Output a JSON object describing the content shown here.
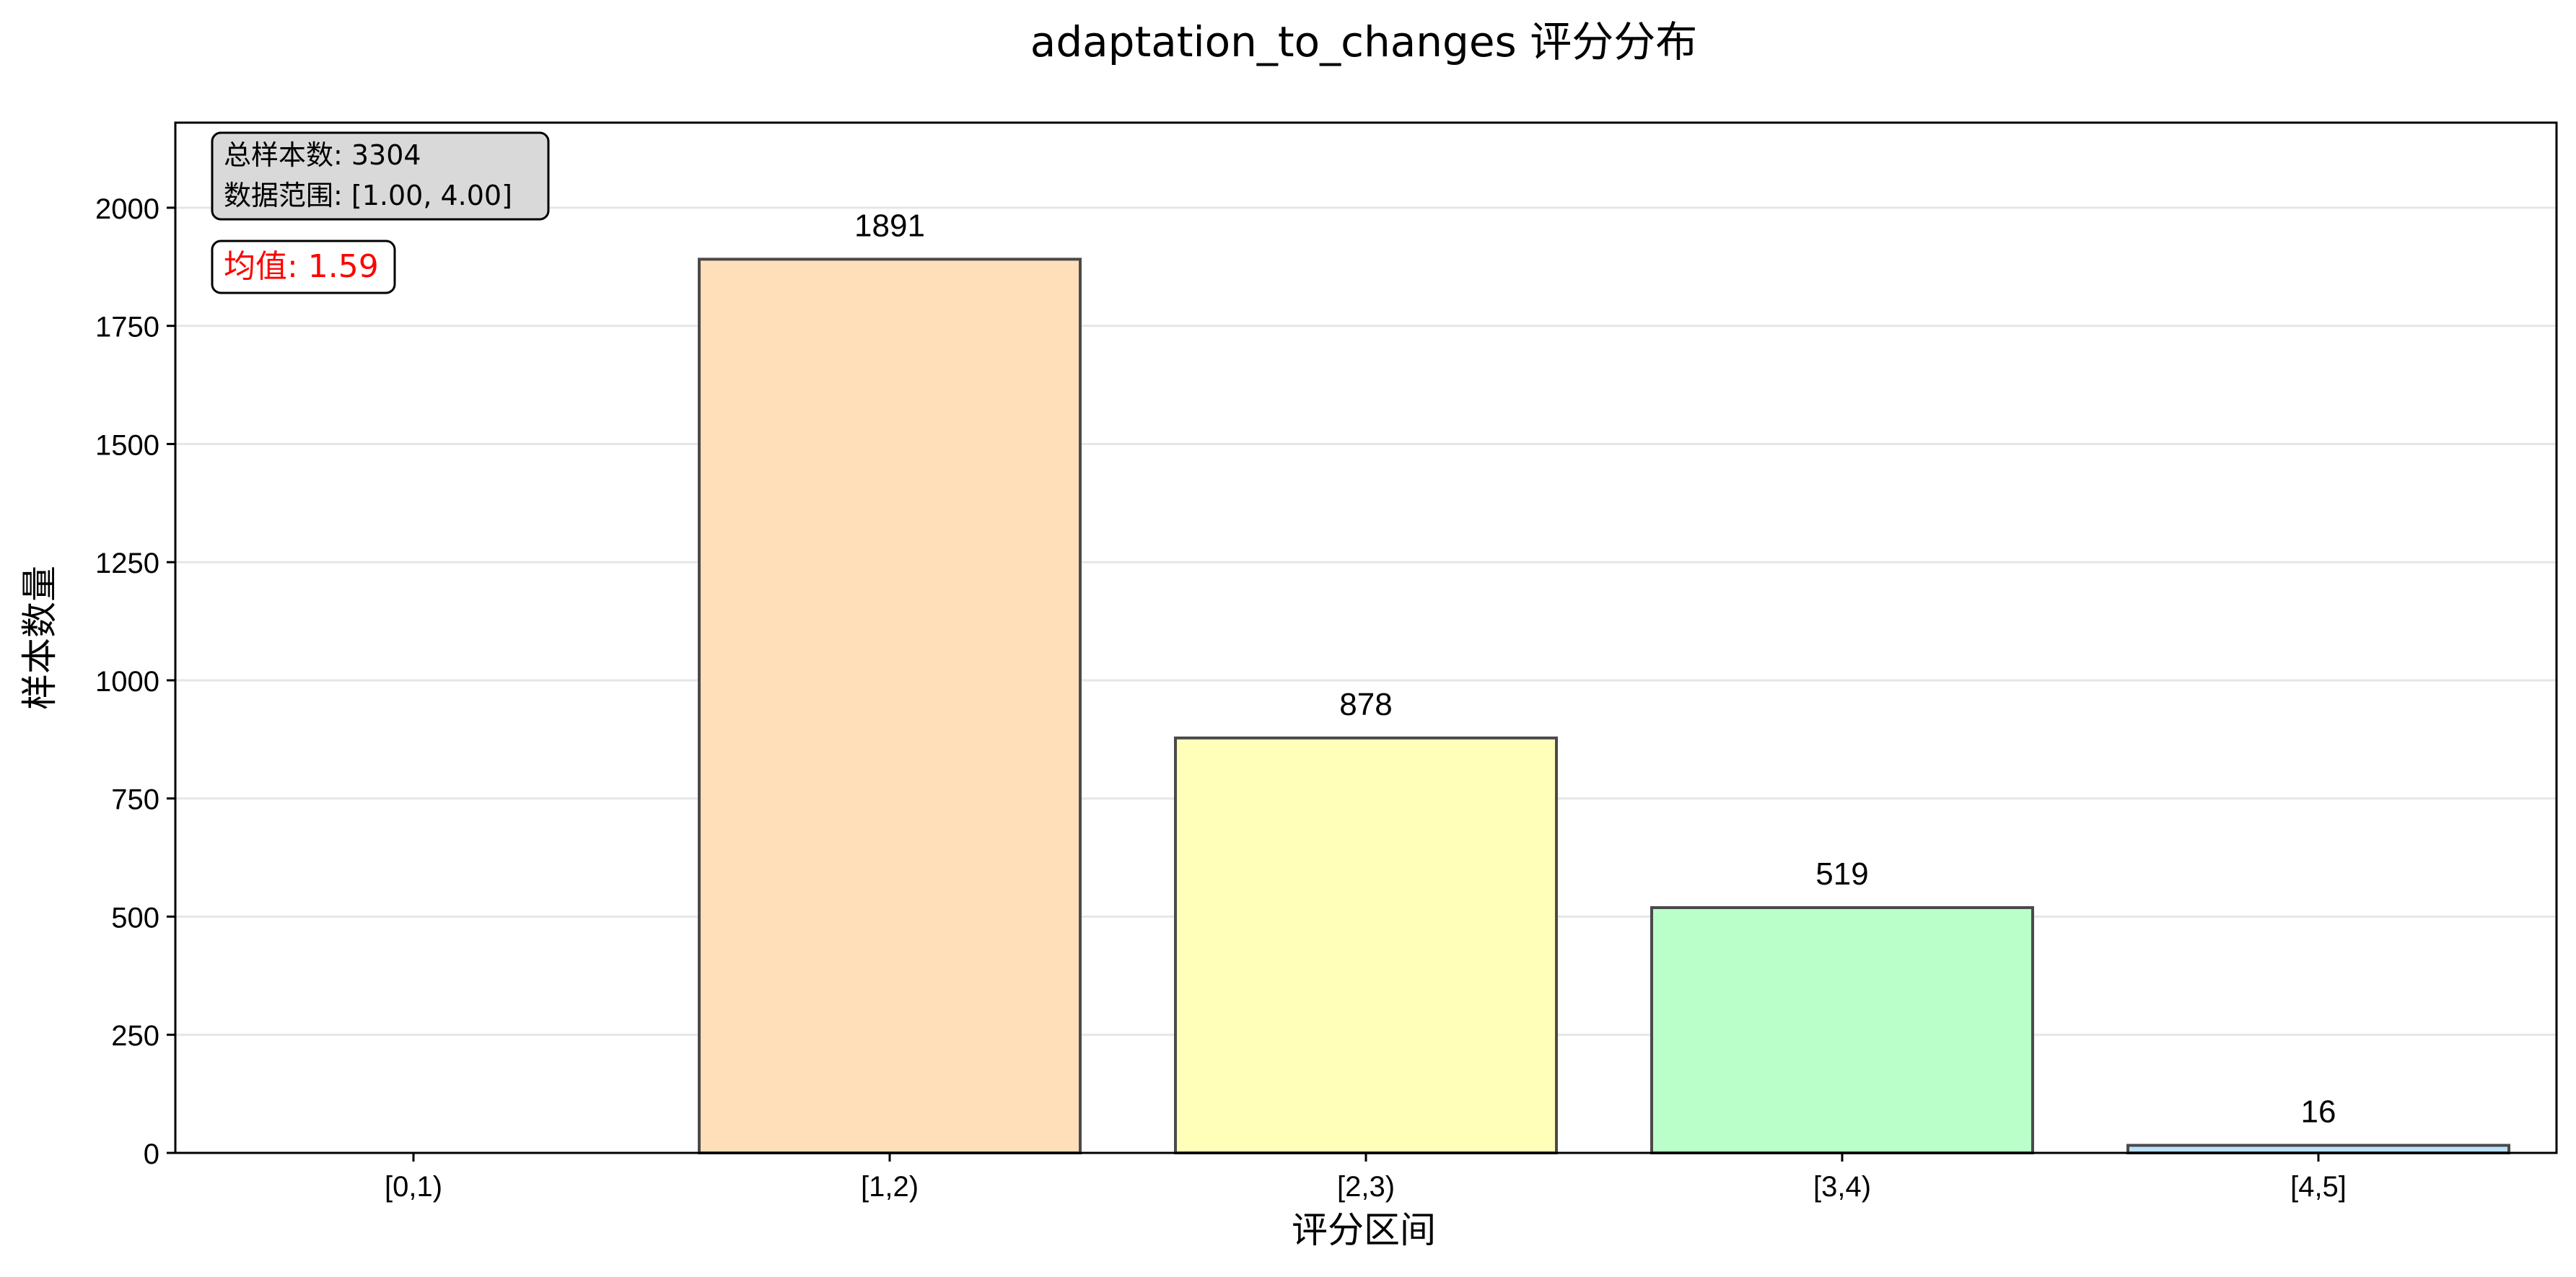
{
  "chart_data": {
    "type": "bar",
    "title": "adaptation_to_changes 评分分布",
    "xlabel": "评分区间",
    "ylabel": "样本数量",
    "categories": [
      "[0,1)",
      "[1,2)",
      "[2,3)",
      "[3,4)",
      "[4,5]"
    ],
    "values": [
      0,
      1891,
      878,
      519,
      16
    ],
    "value_labels": [
      "",
      "1891",
      "878",
      "519",
      "16"
    ],
    "colors": [
      "#ffb3ba",
      "#ffdfba",
      "#ffffba",
      "#baffc9",
      "#bae1ff"
    ],
    "ylim": [
      0,
      2180
    ],
    "yticks": [
      0,
      250,
      500,
      750,
      1000,
      1250,
      1500,
      1750,
      2000
    ],
    "grid": "y",
    "info_box": {
      "line1": "总样本数: 3304",
      "line2": "数据范围: [1.00, 4.00]"
    },
    "mean_label": "均值: 1.59",
    "mean_color": "#ff0000"
  }
}
